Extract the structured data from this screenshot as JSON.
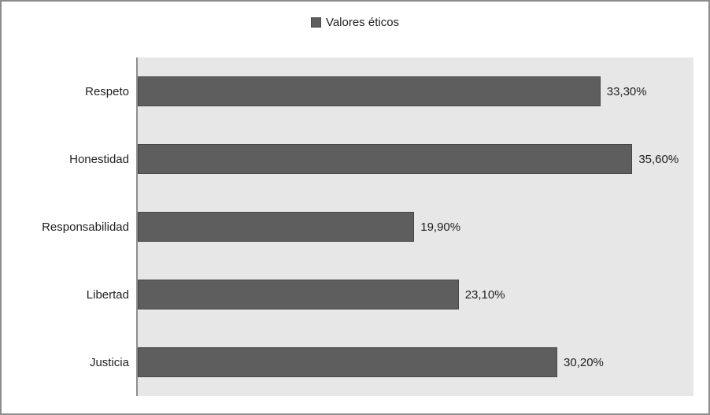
{
  "chart_data": {
    "type": "bar",
    "orientation": "horizontal",
    "title": "",
    "legend": "Valores éticos",
    "legend_position": "top-center",
    "categories": [
      "Respeto",
      "Honestidad",
      "Responsabilidad",
      "Libertad",
      "Justicia"
    ],
    "values": [
      33.3,
      35.6,
      19.9,
      23.1,
      30.2
    ],
    "value_labels": [
      "33,30%",
      "35,60%",
      "19,90%",
      "23,10%",
      "30,20%"
    ],
    "xlabel": "",
    "ylabel": "",
    "xlim": [
      0,
      40
    ],
    "grid": false,
    "colors": {
      "bar_fill": "#5e5e5e",
      "bar_border": "#474747",
      "plot_background": "#e7e7e7",
      "axis_line": "#8e8e8e",
      "canvas_border": "#8c8c8c",
      "label_text": "#1f1f1f"
    }
  }
}
